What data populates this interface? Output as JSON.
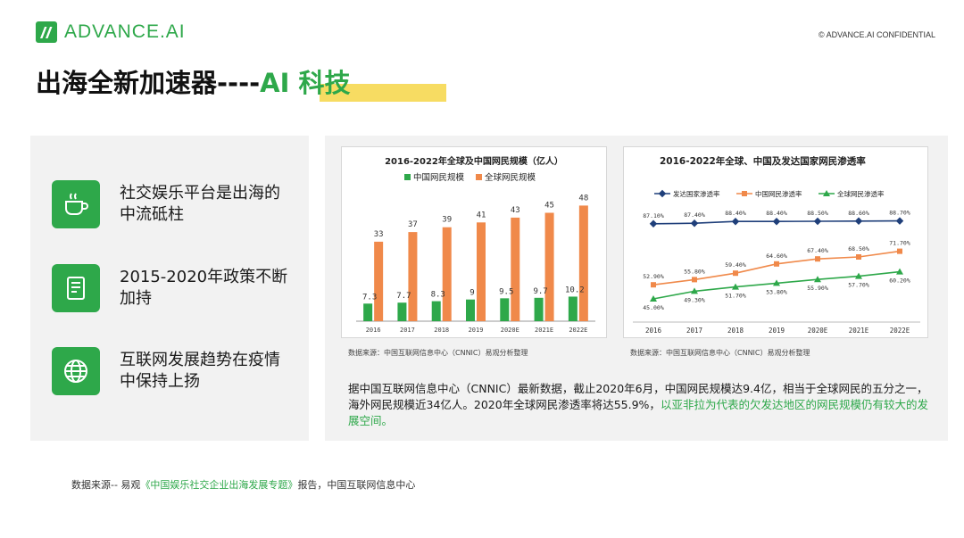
{
  "header": {
    "brand": "ADVANCE.AI",
    "confidential": "© ADVANCE.AI CONFIDENTIAL"
  },
  "title": {
    "main": "出海全新加速器----",
    "accent": "AI 科技"
  },
  "features": [
    {
      "icon": "coffee-cup-icon",
      "text": "社交娱乐平台是出海的中流砥柱"
    },
    {
      "icon": "document-icon",
      "text": "2015-2020年政策不断加持"
    },
    {
      "icon": "globe-icon",
      "text": "互联网发展趋势在疫情中保持上扬"
    }
  ],
  "chart_data": [
    {
      "type": "bar",
      "title": "2016-2022年全球及中国网民规模（亿人）",
      "categories": [
        "2016",
        "2017",
        "2018",
        "2019",
        "2020E",
        "2021E",
        "2022E"
      ],
      "series": [
        {
          "name": "中国网民规模",
          "values": [
            7.3,
            7.7,
            8.3,
            9,
            9.5,
            9.7,
            10.2
          ],
          "labels": [
            "7.3",
            "7.7",
            "8.3",
            "9",
            "9.5",
            "9.7",
            "10.2"
          ],
          "color": "#2ea84a"
        },
        {
          "name": "全球网民规模",
          "values": [
            33,
            37,
            39,
            41,
            43,
            45,
            48
          ],
          "labels": [
            "33",
            "37",
            "39",
            "41",
            "43",
            "45",
            "48"
          ],
          "color": "#f0894a"
        }
      ],
      "ylim": [
        0,
        50
      ],
      "legend": "top"
    },
    {
      "type": "line",
      "title": "2016-2022年全球、中国及发达国家网民渗透率",
      "categories": [
        "2016",
        "2017",
        "2018",
        "2019",
        "2020E",
        "2021E",
        "2022E"
      ],
      "series": [
        {
          "name": "发达国家渗透率",
          "values": [
            87.1,
            87.4,
            88.4,
            88.4,
            88.5,
            88.6,
            88.7
          ],
          "labels": [
            "87.10%",
            "87.40%",
            "88.40%",
            "88.40%",
            "88.50%",
            "88.60%",
            "88.70%"
          ],
          "color": "#1f3f7a"
        },
        {
          "name": "中国网民渗透率",
          "values": [
            52.9,
            55.8,
            59.4,
            64.6,
            67.4,
            68.5,
            71.7
          ],
          "labels": [
            "52.90%",
            "55.80%",
            "59.40%",
            "64.60%",
            "67.40%",
            "68.50%",
            "71.70%"
          ],
          "color": "#f0894a"
        },
        {
          "name": "全球网民渗透率",
          "values": [
            45,
            49.3,
            51.7,
            53.8,
            55.9,
            57.7,
            60.2
          ],
          "labels": [
            "45.00%",
            "49.30%",
            "51.70%",
            "53.80%",
            "55.90%",
            "57.70%",
            "60.20%"
          ],
          "color": "#2ea84a"
        }
      ],
      "ylim": [
        35,
        95
      ],
      "legend": "top"
    }
  ],
  "chart_sources": [
    "数据来源：中国互联网信息中心（CNNIC）易观分析整理",
    "数据来源：中国互联网信息中心（CNNIC）易观分析整理"
  ],
  "paragraph": {
    "normal": "据中国互联网信息中心（CNNIC）最新数据，截止2020年6月，中国网民规模达9.4亿，相当于全球网民的五分之一，海外网民规模近34亿人。2020年全球网民渗透率将达55.9%，",
    "highlight": "以亚非拉为代表的欠发达地区的网民规模仍有较大的发展空间。"
  },
  "footer_source": {
    "prefix": "数据来源-- 易观",
    "highlight": "《中国娱乐社交企业出海发展专题》",
    "suffix": "报告，中国互联网信息中心"
  },
  "colors": {
    "brand_green": "#2ea84a",
    "title_highlight": "#f7dc62",
    "panel_bg": "#f2f2f2"
  }
}
